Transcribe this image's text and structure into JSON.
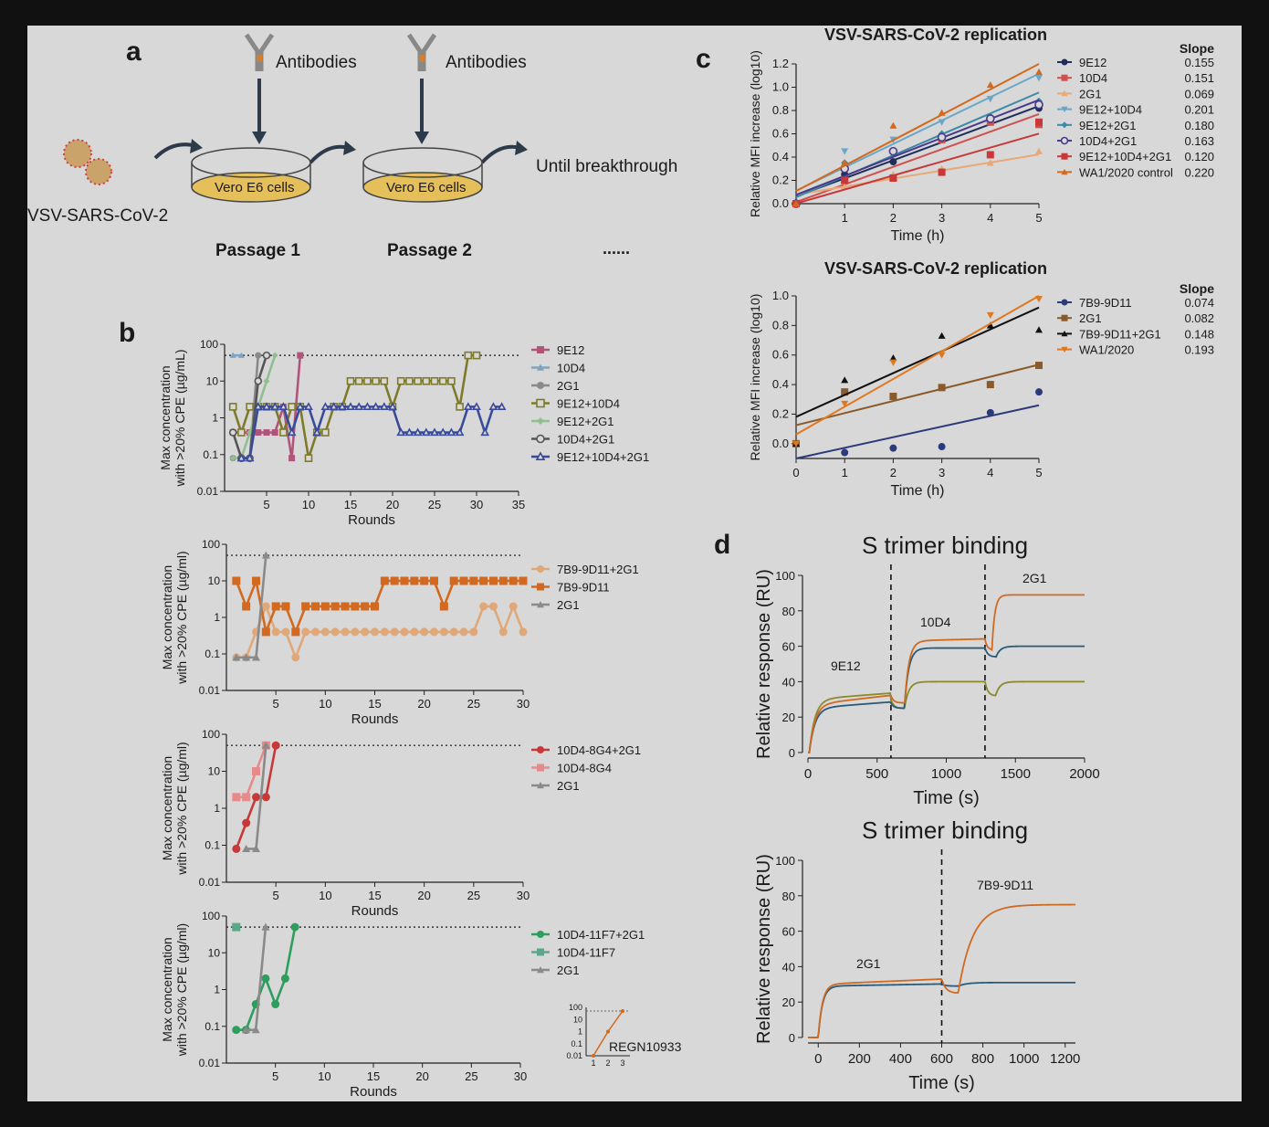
{
  "panel_letters": {
    "a": "a",
    "b": "b",
    "c": "c",
    "d": "d"
  },
  "schematic": {
    "antibodies_1": "Antibodies",
    "antibodies_2": "Antibodies",
    "dish_1": "Vero E6 cells",
    "dish_2": "Vero E6 cells",
    "virus": "VSV-SARS-CoV-2",
    "until": "Until breakthrough",
    "passage_1": "Passage 1",
    "passage_2": "Passage 2",
    "ellipsis": "......"
  },
  "colors": {
    "9E12": "#b0557a",
    "10D4": "#7ba3c4",
    "2G1": "#8a8a8a",
    "9E12+10D4": "#7f7a2a",
    "9E12+2G1": "#8fbf8f",
    "10D4+2G1": "#555555",
    "9E12+10D4+2G1": "#3a4a9a",
    "7B9-9D11+2G1": "#e0a878",
    "7B9-9D11": "#d2691e",
    "10D4-8G4+2G1": "#c83838",
    "10D4-8G4": "#e88a8a",
    "10D4-11F7+2G1": "#2e9e5e",
    "10D4-11F7": "#5aa88a",
    "c_9E12": "#1f2d5a",
    "c_10D4": "#d05050",
    "c_2G1": "#e8a878",
    "c_9E12+10D4": "#6aa8c8",
    "c_9E12+2G1": "#3a8aa8",
    "c_10D4+2G1": "#4a3a8a",
    "c_9E12+10D4+2G1": "#c83838",
    "c_WA1": "#d2691e",
    "c_7B9": "#2a3a7a",
    "c_2G1b": "#8a5a2a",
    "c_combo": "#111111",
    "c_WA1b": "#e07820",
    "d_orange": "#d06a20",
    "d_blue": "#2a5a7a",
    "d_olive": "#8a8a2a"
  },
  "chart_data": [
    {
      "type": "line",
      "id": "b1",
      "xlabel": "Rounds",
      "ylabel": "Max  concentration with >20% CPE (µg/mL)",
      "ylog": true,
      "ylim": [
        0.01,
        100
      ],
      "xlim": [
        0,
        35
      ],
      "xticks": [
        5,
        10,
        15,
        20,
        25,
        30,
        35
      ],
      "yticks": [
        0.01,
        0.1,
        1,
        10,
        100
      ],
      "yticklabels": [
        "0.01",
        "0.1",
        "1",
        "10",
        "100"
      ],
      "threshold": 50,
      "series": [
        {
          "name": "9E12",
          "marker": "square-filled",
          "x": [
            1,
            2,
            3,
            4,
            5,
            6,
            7,
            8,
            9
          ],
          "y": [
            0.4,
            0.4,
            0.4,
            0.4,
            0.4,
            0.4,
            2,
            0.08,
            50
          ]
        },
        {
          "name": "10D4",
          "marker": "triangle-filled",
          "x": [
            1,
            2
          ],
          "y": [
            50,
            50
          ]
        },
        {
          "name": "2G1",
          "marker": "circle-filled",
          "x": [
            1,
            2,
            3,
            4
          ],
          "y": [
            0.08,
            0.08,
            0.08,
            50
          ]
        },
        {
          "name": "9E12+10D4",
          "marker": "square-open",
          "x": [
            1,
            2,
            3,
            4,
            5,
            6,
            7,
            8,
            9,
            10,
            11,
            12,
            13,
            14,
            15,
            16,
            17,
            18,
            19,
            20,
            21,
            22,
            23,
            24,
            25,
            26,
            27,
            28,
            29,
            30
          ],
          "y": [
            2,
            0.4,
            2,
            2,
            2,
            2,
            0.4,
            2,
            2,
            0.08,
            0.4,
            0.4,
            2,
            2,
            10,
            10,
            10,
            10,
            10,
            2,
            10,
            10,
            10,
            10,
            10,
            10,
            10,
            2,
            50,
            50
          ]
        },
        {
          "name": "9E12+2G1",
          "marker": "diamond-filled",
          "x": [
            1,
            2,
            3,
            4,
            5,
            6
          ],
          "y": [
            0.08,
            0.08,
            0.4,
            2,
            10,
            50
          ]
        },
        {
          "name": "10D4+2G1",
          "marker": "circle-open",
          "x": [
            1,
            2,
            3,
            4,
            5
          ],
          "y": [
            0.4,
            0.08,
            0.08,
            10,
            50
          ]
        },
        {
          "name": "9E12+10D4+2G1",
          "marker": "triangle-open",
          "x": [
            2,
            3,
            4,
            5,
            6,
            7,
            8,
            9,
            10,
            11,
            12,
            13,
            14,
            15,
            16,
            17,
            18,
            19,
            20,
            21,
            22,
            23,
            24,
            25,
            26,
            27,
            28,
            29,
            30,
            31,
            32,
            33
          ],
          "y": [
            0.08,
            0.08,
            2,
            2,
            2,
            2,
            0.4,
            2,
            2,
            0.4,
            2,
            2,
            2,
            2,
            2,
            2,
            2,
            2,
            2,
            0.4,
            0.4,
            0.4,
            0.4,
            0.4,
            0.4,
            0.4,
            0.4,
            2,
            2,
            0.4,
            2,
            2
          ]
        }
      ]
    },
    {
      "type": "line",
      "id": "b2",
      "xlabel": "Rounds",
      "ylabel": "Max  concentration with >20% CPE (µg/ml)",
      "ylog": true,
      "ylim": [
        0.01,
        100
      ],
      "xlim": [
        0,
        30
      ],
      "xticks": [
        5,
        10,
        15,
        20,
        25,
        30
      ],
      "yticks": [
        0.01,
        0.1,
        1,
        10,
        100
      ],
      "yticklabels": [
        "0.01",
        "0.1",
        "1",
        "10",
        "100"
      ],
      "threshold": 50,
      "series": [
        {
          "name": "7B9-9D11+2G1",
          "marker": "circle-filled",
          "x": [
            1,
            2,
            3,
            4,
            5,
            6,
            7,
            8,
            9,
            10,
            11,
            12,
            13,
            14,
            15,
            16,
            17,
            18,
            19,
            20,
            21,
            22,
            23,
            24,
            25,
            26,
            27,
            28,
            29,
            30
          ],
          "y": [
            0.08,
            0.08,
            0.4,
            2,
            0.4,
            0.4,
            0.08,
            0.4,
            0.4,
            0.4,
            0.4,
            0.4,
            0.4,
            0.4,
            0.4,
            0.4,
            0.4,
            0.4,
            0.4,
            0.4,
            0.4,
            0.4,
            0.4,
            0.4,
            0.4,
            2,
            2,
            0.4,
            2,
            0.4
          ]
        },
        {
          "name": "7B9-9D11",
          "marker": "square-filled",
          "x": [
            1,
            2,
            3,
            4,
            5,
            6,
            7,
            8,
            9,
            10,
            11,
            12,
            13,
            14,
            15,
            16,
            17,
            18,
            19,
            20,
            21,
            22,
            23,
            24,
            25,
            26,
            27,
            28,
            29,
            30
          ],
          "y": [
            10,
            2,
            10,
            0.4,
            2,
            2,
            0.4,
            2,
            2,
            2,
            2,
            2,
            2,
            2,
            2,
            10,
            10,
            10,
            10,
            10,
            10,
            2,
            10,
            10,
            10,
            10,
            10,
            10,
            10,
            10
          ]
        },
        {
          "name": "2G1",
          "marker": "triangle-filled",
          "x": [
            1,
            2,
            3,
            4
          ],
          "y": [
            0.08,
            0.08,
            0.08,
            50
          ]
        }
      ]
    },
    {
      "type": "line",
      "id": "b3",
      "xlabel": "Rounds",
      "ylabel": "Max  concentration with >20% CPE (µg/ml)",
      "ylog": true,
      "ylim": [
        0.01,
        100
      ],
      "xlim": [
        0,
        30
      ],
      "xticks": [
        5,
        10,
        15,
        20,
        25,
        30
      ],
      "yticks": [
        0.01,
        0.1,
        1,
        10,
        100
      ],
      "yticklabels": [
        "0.01",
        "0.1",
        "1",
        "10",
        "100"
      ],
      "threshold": 50,
      "series": [
        {
          "name": "10D4-8G4+2G1",
          "marker": "circle-filled",
          "x": [
            1,
            2,
            3,
            4,
            5
          ],
          "y": [
            0.08,
            0.4,
            2,
            2,
            50
          ]
        },
        {
          "name": "10D4-8G4",
          "marker": "square-filled",
          "x": [
            1,
            2,
            3,
            4
          ],
          "y": [
            2,
            2,
            10,
            50
          ]
        },
        {
          "name": "2G1",
          "marker": "triangle-filled",
          "x": [
            2,
            3,
            4
          ],
          "y": [
            0.08,
            0.08,
            50
          ]
        }
      ]
    },
    {
      "type": "line",
      "id": "b4",
      "xlabel": "Rounds",
      "ylabel": "Max  concentration with >20% CPE (µg/ml)",
      "ylog": true,
      "ylim": [
        0.01,
        100
      ],
      "xlim": [
        0,
        30
      ],
      "xticks": [
        5,
        10,
        15,
        20,
        25,
        30
      ],
      "yticks": [
        0.01,
        0.1,
        1,
        10,
        100
      ],
      "yticklabels": [
        "0.01",
        "0.1",
        "1",
        "10",
        "100"
      ],
      "threshold": 50,
      "series": [
        {
          "name": "10D4-11F7+2G1",
          "marker": "circle-filled",
          "x": [
            1,
            2,
            3,
            4,
            5,
            6,
            7
          ],
          "y": [
            0.08,
            0.08,
            0.4,
            2,
            0.4,
            2,
            50
          ]
        },
        {
          "name": "10D4-11F7",
          "marker": "square-filled",
          "x": [
            1
          ],
          "y": [
            50
          ]
        },
        {
          "name": "2G1",
          "marker": "triangle-filled",
          "x": [
            2,
            3,
            4
          ],
          "y": [
            0.08,
            0.08,
            50
          ]
        }
      ],
      "inset": {
        "label": "REGN10933",
        "x": [
          1,
          2,
          3
        ],
        "y": [
          0.01,
          1,
          50
        ],
        "yticklabels": [
          "100",
          "10",
          "1",
          "0.1",
          "0.01"
        ],
        "xticklabels": [
          "1",
          "2",
          "3"
        ]
      }
    },
    {
      "type": "scatter",
      "id": "c1",
      "title": "VSV-SARS-CoV-2 replication",
      "xlabel": "Time (h)",
      "ylabel": "Relative MFI increase (log10)",
      "xlim": [
        0,
        5
      ],
      "ylim": [
        0,
        1.2
      ],
      "xticks": [
        1,
        2,
        3,
        4,
        5
      ],
      "yticks": [
        0,
        0.2,
        0.4,
        0.6,
        0.8,
        1.0,
        1.2
      ],
      "yticklabels": [
        "0.0",
        "0.2",
        "0.4",
        "0.6",
        "0.8",
        "1.0",
        "1.2"
      ],
      "slope_header": "Slope",
      "series": [
        {
          "name": "9E12",
          "slope": "0.155",
          "marker": "circle-filled",
          "x": [
            0,
            1,
            2,
            3,
            4,
            5
          ],
          "y": [
            0,
            0.25,
            0.36,
            0.55,
            0.72,
            0.82
          ]
        },
        {
          "name": "10D4",
          "slope": "0.151",
          "marker": "square-filled",
          "x": [
            0,
            1,
            2,
            3,
            4,
            5
          ],
          "y": [
            0,
            0.2,
            0.22,
            0.55,
            0.7,
            0.68
          ]
        },
        {
          "name": "2G1",
          "slope": "0.069",
          "marker": "triangle-filled",
          "x": [
            0,
            1,
            2,
            3,
            4,
            5
          ],
          "y": [
            0,
            0.15,
            0.25,
            0.3,
            0.35,
            0.45
          ]
        },
        {
          "name": "9E12+10D4",
          "slope": "0.201",
          "marker": "triangle-down",
          "x": [
            0,
            1,
            2,
            3,
            4,
            5
          ],
          "y": [
            0,
            0.45,
            0.55,
            0.7,
            0.9,
            1.08
          ]
        },
        {
          "name": "9E12+2G1",
          "slope": "0.180",
          "marker": "diamond-filled",
          "x": [
            0,
            1,
            2,
            3,
            4,
            5
          ],
          "y": [
            0,
            0.35,
            0.45,
            0.6,
            0.75,
            0.88
          ]
        },
        {
          "name": "10D4+2G1",
          "slope": "0.163",
          "marker": "circle-open",
          "x": [
            0,
            1,
            2,
            3,
            4,
            5
          ],
          "y": [
            0,
            0.3,
            0.45,
            0.57,
            0.73,
            0.85
          ]
        },
        {
          "name": "9E12+10D4+2G1",
          "slope": "0.120",
          "marker": "square-filled",
          "x": [
            0,
            1,
            2,
            3,
            4,
            5
          ],
          "y": [
            0,
            0.2,
            0.22,
            0.27,
            0.42,
            0.7
          ]
        },
        {
          "name": "WA1/2020 control",
          "slope": "0.220",
          "marker": "triangle-filled",
          "x": [
            0,
            1,
            2,
            3,
            4,
            5
          ],
          "y": [
            0,
            0.35,
            0.67,
            0.78,
            1.02,
            1.13
          ]
        }
      ]
    },
    {
      "type": "scatter",
      "id": "c2",
      "title": "VSV-SARS-CoV-2 replication",
      "xlabel": "Time (h)",
      "ylabel": "Relative MFI increase (log10)",
      "xlim": [
        0,
        5
      ],
      "ylim": [
        -0.1,
        1.0
      ],
      "xticks": [
        0,
        1,
        2,
        3,
        4,
        5
      ],
      "yticks": [
        0,
        0.2,
        0.4,
        0.6,
        0.8,
        1.0
      ],
      "yticklabels": [
        "0.0",
        "0.2",
        "0.4",
        "0.6",
        "0.8",
        "1.0"
      ],
      "slope_header": "Slope",
      "series": [
        {
          "name": "7B9-9D11",
          "slope": "0.074",
          "marker": "circle-filled",
          "x": [
            0,
            1,
            2,
            3,
            4,
            5
          ],
          "y": [
            0,
            -0.06,
            -0.03,
            -0.02,
            0.21,
            0.35
          ]
        },
        {
          "name": "2G1",
          "slope": "0.082",
          "marker": "square-filled",
          "x": [
            0,
            1,
            2,
            3,
            4,
            5
          ],
          "y": [
            0,
            0.35,
            0.32,
            0.38,
            0.4,
            0.53
          ]
        },
        {
          "name": "7B9-9D11+2G1",
          "slope": "0.148",
          "marker": "triangle-filled",
          "x": [
            0,
            1,
            2,
            3,
            4,
            5
          ],
          "y": [
            0,
            0.43,
            0.58,
            0.73,
            0.8,
            0.77
          ]
        },
        {
          "name": "WA1/2020",
          "slope": "0.193",
          "marker": "triangle-down",
          "x": [
            0,
            1,
            2,
            3,
            4,
            5
          ],
          "y": [
            0,
            0.27,
            0.55,
            0.6,
            0.87,
            0.98
          ]
        }
      ]
    },
    {
      "type": "line",
      "id": "d1",
      "title": "S trimer binding",
      "xlabel": "Time (s)",
      "ylabel": "Relative response (RU)",
      "xlim": [
        0,
        2000
      ],
      "ylim": [
        0,
        100
      ],
      "xticks": [
        0,
        500,
        1000,
        1500,
        2000
      ],
      "yticks": [
        0,
        20,
        40,
        60,
        80,
        100
      ],
      "dashed_x": [
        600,
        1280
      ],
      "labels": [
        "9E12",
        "10D4",
        "2G1"
      ]
    },
    {
      "type": "line",
      "id": "d2",
      "title": "S trimer binding",
      "xlabel": "Time (s)",
      "ylabel": "Relative response (RU)",
      "xlim": [
        -50,
        1250
      ],
      "ylim": [
        0,
        100
      ],
      "xticks": [
        0,
        200,
        400,
        600,
        800,
        1000,
        1200
      ],
      "yticks": [
        0,
        20,
        40,
        60,
        80,
        100
      ],
      "dashed_x": [
        600
      ],
      "labels": [
        "2G1",
        "7B9-9D11"
      ]
    }
  ]
}
